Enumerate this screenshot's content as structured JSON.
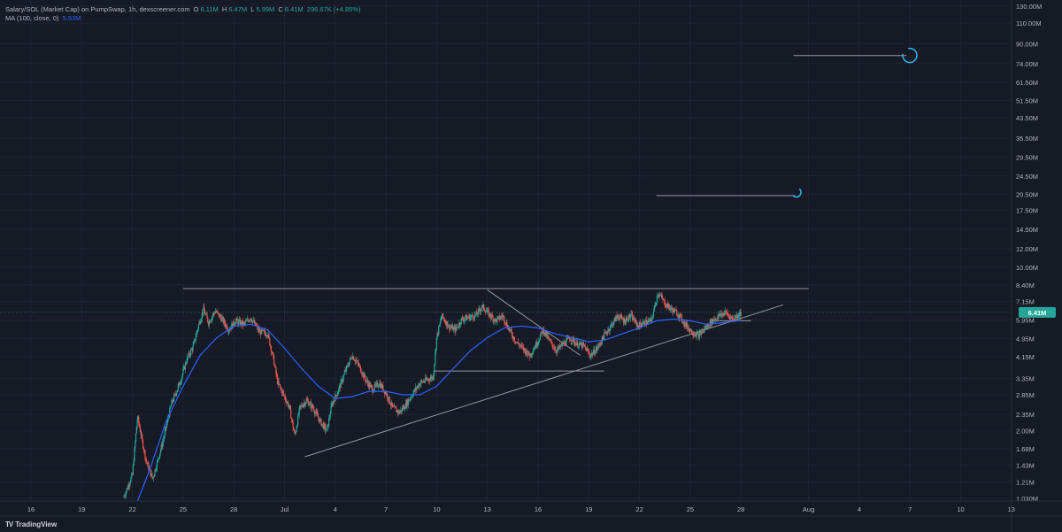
{
  "legend": {
    "title": "Salary/SOL (Market Cap) on PumpSwap, 1h, dexscreener.com",
    "o_label": "O",
    "o_value": "6.11M",
    "h_label": "H",
    "h_value": "6.47M",
    "l_label": "L",
    "l_value": "5.99M",
    "c_label": "C",
    "c_value": "6.41M",
    "change": "296.67K (+4.85%)",
    "ma_label": "MA (100, close, 0)",
    "ma_value": "5.93M"
  },
  "branding": {
    "logo_mark": "TV",
    "logo_text": "TradingView"
  },
  "colors": {
    "background": "#161a25",
    "grid": "#1f2330",
    "up": "#26a69a",
    "down": "#ef5350",
    "ma": "#2962ff",
    "drawing": "#9598a1",
    "arc": "#29b6f6",
    "price_label": "#26a69a"
  },
  "chart_data": {
    "type": "candlestick",
    "title": "Salary/SOL (Market Cap) on PumpSwap, 1h, dexscreener.com",
    "y_scale": "log",
    "ylim": [
      1.03,
      130
    ],
    "y_unit": "M",
    "y_ticks": [
      {
        "v": 130,
        "label": "130.00M"
      },
      {
        "v": 110,
        "label": "110.00M"
      },
      {
        "v": 90,
        "label": "90.00M"
      },
      {
        "v": 74,
        "label": "74.00M"
      },
      {
        "v": 61.5,
        "label": "61.50M"
      },
      {
        "v": 51.5,
        "label": "51.50M"
      },
      {
        "v": 43.5,
        "label": "43.50M"
      },
      {
        "v": 35.5,
        "label": "35.50M"
      },
      {
        "v": 29.5,
        "label": "29.50M"
      },
      {
        "v": 24.5,
        "label": "24.50M"
      },
      {
        "v": 20.5,
        "label": "20.50M"
      },
      {
        "v": 17.5,
        "label": "17.50M"
      },
      {
        "v": 14.5,
        "label": "14.50M"
      },
      {
        "v": 12,
        "label": "12.00M"
      },
      {
        "v": 10,
        "label": "10.00M"
      },
      {
        "v": 8.4,
        "label": "8.40M"
      },
      {
        "v": 7.15,
        "label": "7.15M"
      },
      {
        "v": 5.95,
        "label": "5.95M"
      },
      {
        "v": 4.95,
        "label": "4.95M"
      },
      {
        "v": 4.15,
        "label": "4.15M"
      },
      {
        "v": 3.35,
        "label": "3.35M"
      },
      {
        "v": 2.85,
        "label": "2.85M"
      },
      {
        "v": 2.35,
        "label": "2.35M"
      },
      {
        "v": 2.0,
        "label": "2.00M"
      },
      {
        "v": 1.68,
        "label": "1.68M"
      },
      {
        "v": 1.43,
        "label": "1.43M"
      },
      {
        "v": 1.21,
        "label": "1.21M"
      },
      {
        "v": 1.03,
        "label": "1.030M"
      }
    ],
    "x_range_days": [
      14.5,
      44.5
    ],
    "x_ticks": [
      {
        "d": 16,
        "label": "16"
      },
      {
        "d": 19,
        "label": "19"
      },
      {
        "d": 22,
        "label": "22"
      },
      {
        "d": 25,
        "label": "25"
      },
      {
        "d": 28,
        "label": "28"
      },
      {
        "d": 31,
        "label": "Jul"
      },
      {
        "d": 34,
        "label": "4"
      },
      {
        "d": 37,
        "label": "7"
      },
      {
        "d": 40,
        "label": "10"
      },
      {
        "d": 43,
        "label": "13"
      },
      {
        "d": 46,
        "label": "16"
      },
      {
        "d": 49,
        "label": "19"
      },
      {
        "d": 52,
        "label": "22"
      },
      {
        "d": 55,
        "label": "25"
      },
      {
        "d": 58,
        "label": "28"
      },
      {
        "d": 62,
        "label": "Aug"
      },
      {
        "d": 65,
        "label": "4"
      },
      {
        "d": 68,
        "label": "7"
      },
      {
        "d": 71,
        "label": "10"
      },
      {
        "d": 74,
        "label": "13"
      }
    ],
    "x_domain": [
      14.5,
      74.5
    ],
    "last_price": {
      "value": 6.41,
      "label": "6.41M"
    },
    "price_path": [
      [
        21.5,
        1.05
      ],
      [
        22.0,
        1.3
      ],
      [
        22.3,
        2.3
      ],
      [
        22.8,
        1.5
      ],
      [
        23.2,
        1.25
      ],
      [
        23.8,
        1.8
      ],
      [
        24.3,
        2.6
      ],
      [
        24.8,
        3.2
      ],
      [
        25.2,
        4.0
      ],
      [
        25.6,
        4.6
      ],
      [
        25.9,
        5.6
      ],
      [
        26.2,
        6.6
      ],
      [
        26.5,
        5.8
      ],
      [
        26.9,
        6.5
      ],
      [
        27.3,
        6.0
      ],
      [
        27.7,
        5.4
      ],
      [
        28.1,
        5.9
      ],
      [
        28.6,
        5.7
      ],
      [
        29.0,
        6.1
      ],
      [
        29.5,
        5.3
      ],
      [
        30.0,
        5.2
      ],
      [
        30.3,
        4.2
      ],
      [
        30.6,
        3.2
      ],
      [
        31.0,
        2.8
      ],
      [
        31.3,
        2.5
      ],
      [
        31.6,
        1.9
      ],
      [
        31.9,
        2.5
      ],
      [
        32.3,
        2.7
      ],
      [
        32.7,
        2.5
      ],
      [
        33.1,
        2.2
      ],
      [
        33.5,
        2.0
      ],
      [
        33.8,
        2.6
      ],
      [
        34.2,
        3.0
      ],
      [
        34.6,
        3.6
      ],
      [
        35.0,
        4.2
      ],
      [
        35.4,
        3.8
      ],
      [
        35.8,
        3.3
      ],
      [
        36.2,
        3.0
      ],
      [
        36.6,
        3.2
      ],
      [
        37.0,
        2.9
      ],
      [
        37.4,
        2.5
      ],
      [
        37.8,
        2.4
      ],
      [
        38.2,
        2.6
      ],
      [
        38.6,
        2.9
      ],
      [
        39.0,
        3.2
      ],
      [
        39.4,
        3.3
      ],
      [
        39.8,
        3.4
      ],
      [
        40.0,
        5.0
      ],
      [
        40.3,
        6.2
      ],
      [
        40.7,
        5.6
      ],
      [
        41.1,
        5.4
      ],
      [
        41.5,
        6.0
      ],
      [
        41.9,
        6.1
      ],
      [
        42.3,
        6.2
      ],
      [
        42.7,
        6.8
      ],
      [
        43.1,
        6.3
      ],
      [
        43.5,
        5.9
      ],
      [
        43.9,
        6.2
      ],
      [
        44.3,
        5.4
      ],
      [
        44.7,
        4.8
      ],
      [
        45.1,
        4.5
      ],
      [
        45.5,
        4.2
      ],
      [
        45.9,
        4.7
      ],
      [
        46.3,
        5.4
      ],
      [
        46.7,
        4.8
      ],
      [
        47.1,
        4.4
      ],
      [
        47.5,
        4.7
      ],
      [
        47.9,
        5.0
      ],
      [
        48.3,
        4.7
      ],
      [
        48.7,
        4.6
      ],
      [
        49.1,
        4.2
      ],
      [
        49.5,
        4.5
      ],
      [
        49.9,
        5.1
      ],
      [
        50.3,
        5.6
      ],
      [
        50.7,
        6.2
      ],
      [
        51.1,
        5.9
      ],
      [
        51.5,
        6.2
      ],
      [
        51.9,
        5.6
      ],
      [
        52.3,
        5.8
      ],
      [
        52.7,
        5.9
      ],
      [
        53.1,
        7.8
      ],
      [
        53.5,
        7.0
      ],
      [
        53.9,
        6.6
      ],
      [
        54.3,
        6.3
      ],
      [
        54.7,
        5.7
      ],
      [
        55.1,
        5.3
      ],
      [
        55.5,
        5.1
      ],
      [
        55.9,
        5.5
      ],
      [
        56.3,
        5.9
      ],
      [
        56.7,
        6.2
      ],
      [
        57.1,
        6.4
      ],
      [
        57.5,
        6.0
      ],
      [
        57.9,
        6.3
      ],
      [
        58.0,
        6.41
      ]
    ],
    "ma_path": [
      [
        22.3,
        1.0
      ],
      [
        23.0,
        1.35
      ],
      [
        24.0,
        2.2
      ],
      [
        25.0,
        3.1
      ],
      [
        26.0,
        4.2
      ],
      [
        27.0,
        5.0
      ],
      [
        28.0,
        5.6
      ],
      [
        29.0,
        5.7
      ],
      [
        30.0,
        5.4
      ],
      [
        31.0,
        4.5
      ],
      [
        32.0,
        3.7
      ],
      [
        33.0,
        3.1
      ],
      [
        34.0,
        2.75
      ],
      [
        35.0,
        2.8
      ],
      [
        36.0,
        2.95
      ],
      [
        37.0,
        2.95
      ],
      [
        38.0,
        2.85
      ],
      [
        39.0,
        2.85
      ],
      [
        40.0,
        3.1
      ],
      [
        41.0,
        3.7
      ],
      [
        42.0,
        4.4
      ],
      [
        43.0,
        5.0
      ],
      [
        44.0,
        5.5
      ],
      [
        45.0,
        5.6
      ],
      [
        46.0,
        5.5
      ],
      [
        47.0,
        5.2
      ],
      [
        48.0,
        5.0
      ],
      [
        49.0,
        4.8
      ],
      [
        50.0,
        4.9
      ],
      [
        51.0,
        5.2
      ],
      [
        52.0,
        5.5
      ],
      [
        53.0,
        5.9
      ],
      [
        54.0,
        6.0
      ],
      [
        55.0,
        5.9
      ],
      [
        56.0,
        5.7
      ],
      [
        57.0,
        5.8
      ],
      [
        58.0,
        5.93
      ]
    ],
    "drawings": [
      {
        "kind": "hline",
        "x1": 25.0,
        "x2": 62.0,
        "y": 8.1
      },
      {
        "kind": "trendline",
        "x1": 32.2,
        "y1": 1.55,
        "x2": 60.5,
        "y2": 6.9
      },
      {
        "kind": "hline",
        "x1": 39.8,
        "x2": 49.9,
        "y": 3.6
      },
      {
        "kind": "trendline",
        "x1": 43.0,
        "y1": 8.0,
        "x2": 48.5,
        "y2": 4.2
      },
      {
        "kind": "hline",
        "x1": 56.5,
        "x2": 58.6,
        "y": 5.9
      },
      {
        "kind": "hline",
        "x1": 53.0,
        "x2": 61.2,
        "y": 20.2
      },
      {
        "kind": "hline",
        "x1": 61.1,
        "x2": 67.8,
        "y": 80.0
      }
    ],
    "arcs": [
      {
        "x": 61.3,
        "y": 20.5,
        "size": "small"
      },
      {
        "x": 68.0,
        "y": 80.0,
        "size": "large"
      }
    ]
  }
}
